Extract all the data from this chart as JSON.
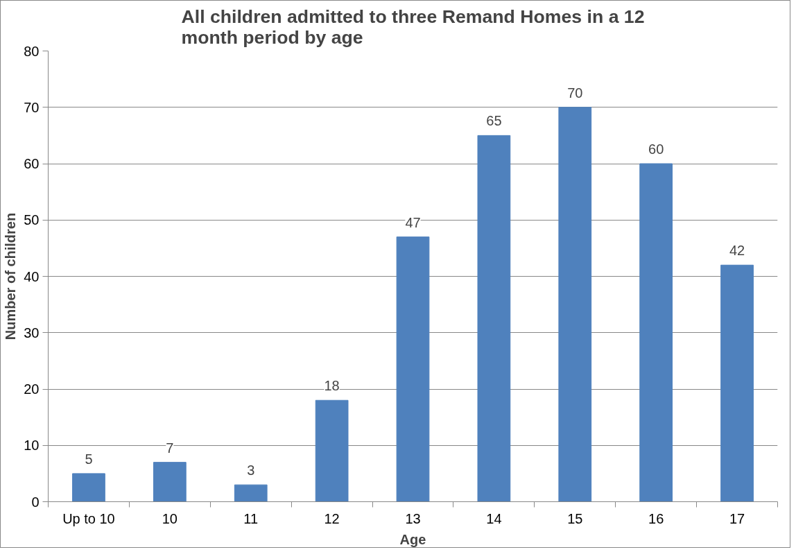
{
  "chart_data": {
    "type": "bar",
    "title": "All children admitted to three Remand Homes in a 12 month period by age",
    "xlabel": "Age",
    "ylabel": "Number of children",
    "categories": [
      "Up to 10",
      "10",
      "11",
      "12",
      "13",
      "14",
      "15",
      "16",
      "17"
    ],
    "values": [
      5,
      7,
      3,
      18,
      47,
      65,
      70,
      60,
      42
    ],
    "color": "#4f81bd",
    "ylim": [
      0,
      80
    ],
    "yticks": [
      0,
      10,
      20,
      30,
      40,
      50,
      60,
      70,
      80
    ],
    "grid": "y",
    "data_labels": true
  }
}
